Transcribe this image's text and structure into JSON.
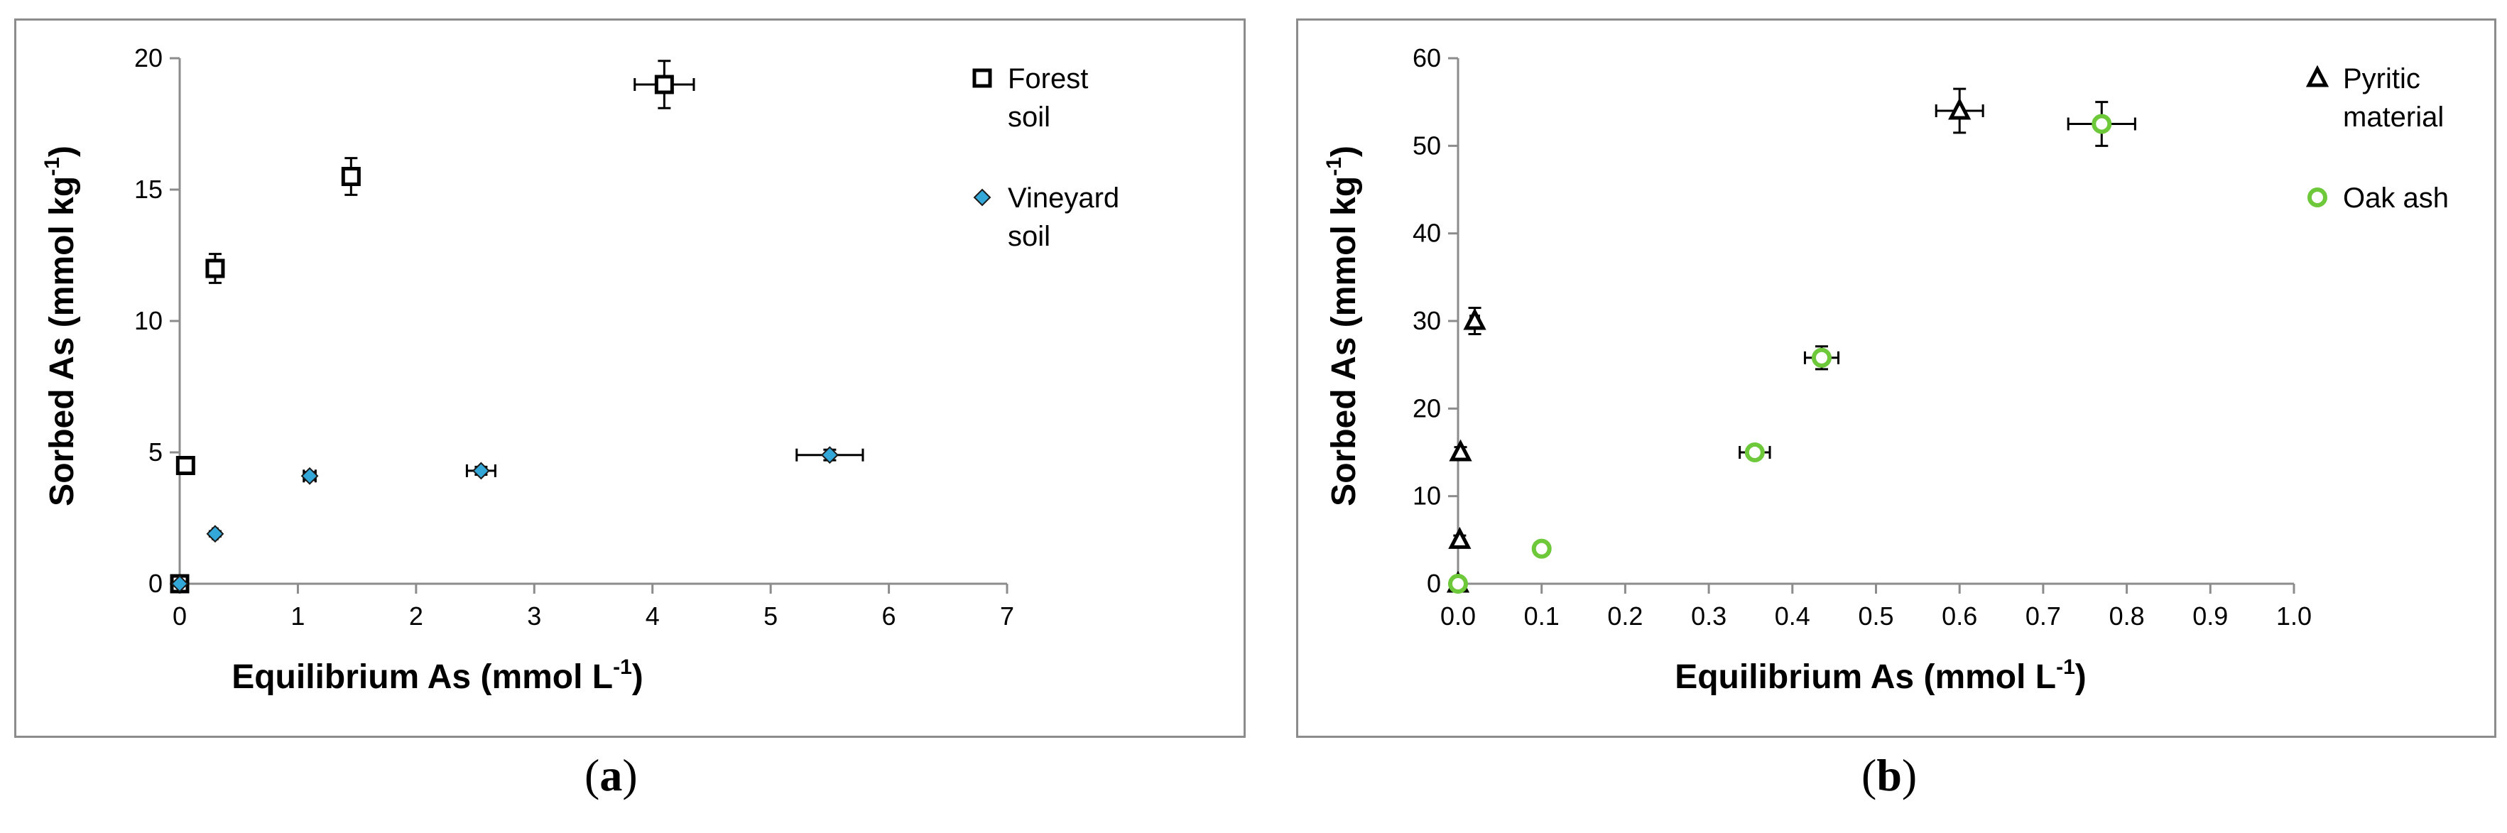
{
  "captions": {
    "a_open": "(",
    "a_letter": "a",
    "a_close": ")",
    "b_open": "(",
    "b_letter": "b",
    "b_close": ")"
  },
  "chart_data": [
    {
      "type": "scatter",
      "panel": "a",
      "xlabel_main": "Equilibrium As (mmol L",
      "xlabel_sup": "-1",
      "xlabel_end": ")",
      "ylabel_main": "Sorbed As (mmol kg",
      "ylabel_sup": "-1",
      "ylabel_end": ")",
      "xlim": [
        0,
        7
      ],
      "ylim": [
        0,
        20
      ],
      "xticks": [
        0,
        1,
        2,
        3,
        4,
        5,
        6,
        7
      ],
      "yticks": [
        0,
        5,
        10,
        15,
        20
      ],
      "xtick_labels": [
        "0",
        "1",
        "2",
        "3",
        "4",
        "5",
        "6",
        "7"
      ],
      "ytick_labels": [
        "0",
        "5",
        "10",
        "15",
        "20"
      ],
      "legend_position": "top-right",
      "series": [
        {
          "name_lines": [
            "Forest",
            "soil"
          ],
          "marker": "square",
          "color": "#000000",
          "fill": "#ffffff",
          "points": [
            {
              "x": 0,
              "y": 0,
              "xerr": 0,
              "yerr": 0
            },
            {
              "x": 0.05,
              "y": 4.5,
              "xerr": 0.02,
              "yerr": 0.2
            },
            {
              "x": 0.3,
              "y": 12.0,
              "xerr": 0.03,
              "yerr": 0.55
            },
            {
              "x": 1.45,
              "y": 15.5,
              "xerr": 0.07,
              "yerr": 0.7
            },
            {
              "x": 4.1,
              "y": 19.0,
              "xerr": 0.25,
              "yerr": 0.9
            }
          ]
        },
        {
          "name_lines": [
            "Vineyard",
            "soil"
          ],
          "marker": "diamond",
          "color": "#000000",
          "fill": "#33a7d8",
          "points": [
            {
              "x": 0,
              "y": 0,
              "xerr": 0,
              "yerr": 0
            },
            {
              "x": 0.3,
              "y": 1.9,
              "xerr": 0.02,
              "yerr": 0.1
            },
            {
              "x": 1.1,
              "y": 4.1,
              "xerr": 0.05,
              "yerr": 0.15
            },
            {
              "x": 2.55,
              "y": 4.3,
              "xerr": 0.12,
              "yerr": 0.15
            },
            {
              "x": 5.5,
              "y": 4.9,
              "xerr": 0.28,
              "yerr": 0.2
            }
          ]
        }
      ]
    },
    {
      "type": "scatter",
      "panel": "b",
      "xlabel_main": "Equilibrium As (mmol L",
      "xlabel_sup": "-1",
      "xlabel_end": ")",
      "ylabel_main": "Sorbed As (mmol kg",
      "ylabel_sup": "-1",
      "ylabel_end": ")",
      "xlim": [
        0,
        1.0
      ],
      "ylim": [
        0,
        60
      ],
      "xticks": [
        0,
        0.1,
        0.2,
        0.3,
        0.4,
        0.5,
        0.6,
        0.7,
        0.8,
        0.9,
        1.0
      ],
      "yticks": [
        0,
        10,
        20,
        30,
        40,
        50,
        60
      ],
      "xtick_labels": [
        "0.0",
        "0.1",
        "0.2",
        "0.3",
        "0.4",
        "0.5",
        "0.6",
        "0.7",
        "0.8",
        "0.9",
        "1.0"
      ],
      "ytick_labels": [
        "0",
        "10",
        "20",
        "30",
        "40",
        "50",
        "60"
      ],
      "legend_position": "top-right",
      "series": [
        {
          "name_lines": [
            "Pyritic",
            "material"
          ],
          "marker": "triangle",
          "color": "#000000",
          "fill": "#ffffff",
          "points": [
            {
              "x": 0,
              "y": 0,
              "xerr": 0,
              "yerr": 0
            },
            {
              "x": 0.002,
              "y": 5,
              "xerr": 0,
              "yerr": 0.5
            },
            {
              "x": 0.003,
              "y": 15,
              "xerr": 0,
              "yerr": 0.6
            },
            {
              "x": 0.02,
              "y": 30,
              "xerr": 0.005,
              "yerr": 1.5
            },
            {
              "x": 0.6,
              "y": 54,
              "xerr": 0.028,
              "yerr": 2.5
            }
          ]
        },
        {
          "name_lines": [
            "Oak ash"
          ],
          "marker": "circle",
          "color": "#6dc83a",
          "fill": "#ffffff",
          "points": [
            {
              "x": 0,
              "y": 0,
              "xerr": 0,
              "yerr": 0
            },
            {
              "x": 0.1,
              "y": 4,
              "xerr": 0.008,
              "yerr": 0.3
            },
            {
              "x": 0.355,
              "y": 15,
              "xerr": 0.018,
              "yerr": 0.6
            },
            {
              "x": 0.435,
              "y": 25.8,
              "xerr": 0.02,
              "yerr": 1.3
            },
            {
              "x": 0.77,
              "y": 52.5,
              "xerr": 0.04,
              "yerr": 2.5
            }
          ]
        }
      ]
    }
  ]
}
